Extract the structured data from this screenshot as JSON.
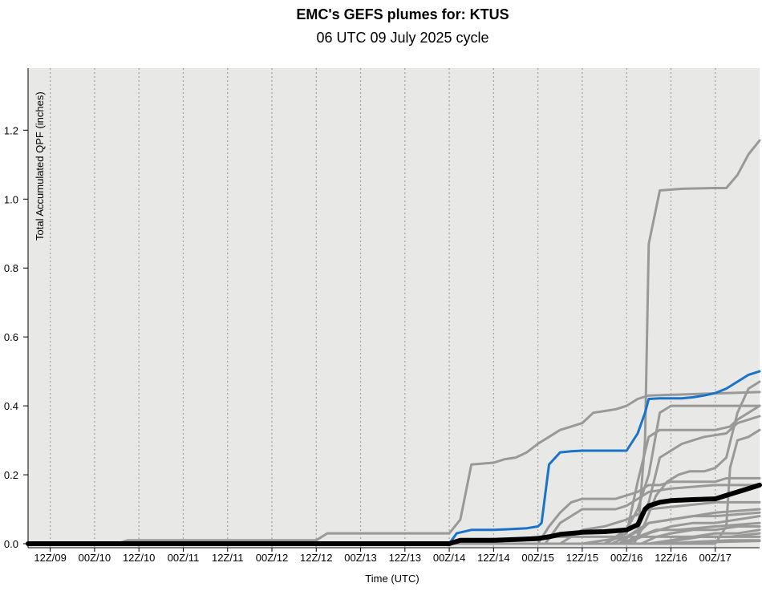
{
  "chart_data": {
    "type": "line",
    "title": "EMC's GEFS plumes for: KTUS",
    "subtitle": "06 UTC 09 July 2025 cycle",
    "xlabel": "Time (UTC)",
    "ylabel": "Total Accumulated QPF (inches)",
    "x_unit": "forecast hour",
    "xlim": [
      0,
      198
    ],
    "ylim": [
      0,
      1.38
    ],
    "grid": "vertical dotted",
    "x_ticks": [
      {
        "x": 6,
        "label": "12Z/09"
      },
      {
        "x": 18,
        "label": "00Z/10"
      },
      {
        "x": 30,
        "label": "12Z/10"
      },
      {
        "x": 42,
        "label": "00Z/11"
      },
      {
        "x": 54,
        "label": "12Z/11"
      },
      {
        "x": 66,
        "label": "00Z/12"
      },
      {
        "x": 78,
        "label": "12Z/12"
      },
      {
        "x": 90,
        "label": "00Z/13"
      },
      {
        "x": 102,
        "label": "12Z/13"
      },
      {
        "x": 114,
        "label": "00Z/14"
      },
      {
        "x": 126,
        "label": "12Z/14"
      },
      {
        "x": 138,
        "label": "00Z/15"
      },
      {
        "x": 150,
        "label": "12Z/15"
      },
      {
        "x": 162,
        "label": "00Z/16"
      },
      {
        "x": 174,
        "label": "12Z/16"
      },
      {
        "x": 186,
        "label": "00Z/17"
      }
    ],
    "y_ticks": [
      {
        "y": 0.0,
        "label": "0.0"
      },
      {
        "y": 0.2,
        "label": "0.2"
      },
      {
        "y": 0.4,
        "label": "0.4"
      },
      {
        "y": 0.6,
        "label": "0.6"
      },
      {
        "y": 0.8,
        "label": "0.8"
      },
      {
        "y": 1.0,
        "label": "1.0"
      },
      {
        "y": 1.2,
        "label": "1.2"
      }
    ],
    "series": [
      {
        "color": "#999999",
        "width": 3,
        "points": [
          [
            0,
            0
          ],
          [
            24,
            0
          ],
          [
            27,
            0.01
          ],
          [
            78,
            0.01
          ],
          [
            81,
            0.03
          ],
          [
            102,
            0.03
          ],
          [
            114,
            0.03
          ],
          [
            117,
            0.07
          ],
          [
            120,
            0.23
          ],
          [
            126,
            0.235
          ],
          [
            129,
            0.245
          ],
          [
            132,
            0.25
          ],
          [
            135,
            0.265
          ],
          [
            138,
            0.29
          ],
          [
            141,
            0.31
          ],
          [
            144,
            0.33
          ],
          [
            147,
            0.34
          ],
          [
            150,
            0.35
          ],
          [
            153,
            0.38
          ],
          [
            156,
            0.385
          ],
          [
            159,
            0.39
          ],
          [
            162,
            0.4
          ],
          [
            165,
            0.42
          ],
          [
            168,
            0.43
          ],
          [
            198,
            0.44
          ]
        ]
      },
      {
        "color": "#999999",
        "width": 3,
        "points": [
          [
            0,
            0
          ],
          [
            162,
            0.0
          ],
          [
            165,
            0.02
          ],
          [
            167,
            0.3
          ],
          [
            168,
            0.87
          ],
          [
            171,
            1.025
          ],
          [
            177,
            1.03
          ],
          [
            186,
            1.032
          ],
          [
            189,
            1.032
          ],
          [
            192,
            1.07
          ],
          [
            195,
            1.13
          ],
          [
            198,
            1.17
          ]
        ]
      },
      {
        "color": "#999999",
        "width": 3,
        "points": [
          [
            0,
            0
          ],
          [
            156,
            0.0
          ],
          [
            162,
            0.04
          ],
          [
            165,
            0.1
          ],
          [
            168,
            0.2
          ],
          [
            171,
            0.38
          ],
          [
            174,
            0.4
          ],
          [
            198,
            0.4
          ]
        ]
      },
      {
        "color": "#999999",
        "width": 3,
        "points": [
          [
            0,
            0
          ],
          [
            156,
            0.0
          ],
          [
            162,
            0.03
          ],
          [
            165,
            0.18
          ],
          [
            168,
            0.31
          ],
          [
            171,
            0.33
          ],
          [
            177,
            0.33
          ],
          [
            186,
            0.33
          ],
          [
            190,
            0.34
          ],
          [
            192,
            0.36
          ],
          [
            198,
            0.4
          ]
        ]
      },
      {
        "color": "#999999",
        "width": 3,
        "points": [
          [
            0,
            0
          ],
          [
            160,
            0.0
          ],
          [
            165,
            0.04
          ],
          [
            168,
            0.12
          ],
          [
            171,
            0.25
          ],
          [
            174,
            0.27
          ],
          [
            177,
            0.29
          ],
          [
            180,
            0.3
          ],
          [
            183,
            0.31
          ],
          [
            186,
            0.315
          ],
          [
            189,
            0.32
          ],
          [
            192,
            0.35
          ],
          [
            195,
            0.36
          ],
          [
            198,
            0.37
          ]
        ]
      },
      {
        "color": "#999999",
        "width": 3,
        "points": [
          [
            0,
            0
          ],
          [
            164,
            0.0
          ],
          [
            167,
            0.06
          ],
          [
            170,
            0.14
          ],
          [
            173,
            0.18
          ],
          [
            176,
            0.2
          ],
          [
            179,
            0.21
          ],
          [
            183,
            0.21
          ],
          [
            186,
            0.22
          ],
          [
            189,
            0.25
          ],
          [
            192,
            0.38
          ],
          [
            195,
            0.45
          ],
          [
            198,
            0.47
          ]
        ]
      },
      {
        "color": "#999999",
        "width": 3,
        "points": [
          [
            0,
            0
          ],
          [
            186,
            0.0
          ],
          [
            189,
            0.05
          ],
          [
            190,
            0.22
          ],
          [
            192,
            0.3
          ],
          [
            195,
            0.31
          ],
          [
            198,
            0.33
          ]
        ]
      },
      {
        "color": "#999999",
        "width": 3,
        "points": [
          [
            0,
            0
          ],
          [
            138,
            0.0
          ],
          [
            141,
            0.05
          ],
          [
            144,
            0.09
          ],
          [
            147,
            0.12
          ],
          [
            150,
            0.13
          ],
          [
            156,
            0.13
          ],
          [
            159,
            0.13
          ],
          [
            162,
            0.14
          ],
          [
            165,
            0.15
          ],
          [
            168,
            0.17
          ],
          [
            171,
            0.17
          ],
          [
            174,
            0.18
          ],
          [
            177,
            0.18
          ],
          [
            186,
            0.18
          ],
          [
            189,
            0.19
          ],
          [
            198,
            0.19
          ]
        ]
      },
      {
        "color": "#999999",
        "width": 3,
        "points": [
          [
            0,
            0
          ],
          [
            140,
            0.0
          ],
          [
            144,
            0.06
          ],
          [
            147,
            0.08
          ],
          [
            150,
            0.1
          ],
          [
            156,
            0.1
          ],
          [
            159,
            0.1
          ],
          [
            162,
            0.11
          ],
          [
            165,
            0.13
          ],
          [
            168,
            0.15
          ],
          [
            174,
            0.16
          ],
          [
            186,
            0.17
          ],
          [
            198,
            0.17
          ]
        ]
      },
      {
        "color": "#999999",
        "width": 3,
        "points": [
          [
            0,
            0
          ],
          [
            144,
            0.0
          ],
          [
            147,
            0.02
          ],
          [
            150,
            0.04
          ],
          [
            156,
            0.05
          ],
          [
            159,
            0.06
          ],
          [
            162,
            0.07
          ],
          [
            168,
            0.1
          ],
          [
            177,
            0.11
          ],
          [
            186,
            0.12
          ],
          [
            198,
            0.12
          ]
        ]
      },
      {
        "color": "#999999",
        "width": 3,
        "points": [
          [
            0,
            0
          ],
          [
            150,
            0.0
          ],
          [
            156,
            0.01
          ],
          [
            162,
            0.02
          ],
          [
            165,
            0.04
          ],
          [
            168,
            0.06
          ],
          [
            174,
            0.07
          ],
          [
            186,
            0.09
          ],
          [
            198,
            0.1
          ]
        ]
      },
      {
        "color": "#999999",
        "width": 3,
        "points": [
          [
            0,
            0
          ],
          [
            158,
            0.0
          ],
          [
            162,
            0.02
          ],
          [
            166,
            0.04
          ],
          [
            168,
            0.06
          ],
          [
            174,
            0.07
          ],
          [
            180,
            0.08
          ],
          [
            186,
            0.08
          ],
          [
            198,
            0.09
          ]
        ]
      },
      {
        "color": "#999999",
        "width": 3,
        "points": [
          [
            0,
            0
          ],
          [
            162,
            0.0
          ],
          [
            168,
            0.03
          ],
          [
            174,
            0.05
          ],
          [
            180,
            0.06
          ],
          [
            186,
            0.06
          ],
          [
            192,
            0.07
          ],
          [
            198,
            0.08
          ]
        ]
      },
      {
        "color": "#999999",
        "width": 3,
        "points": [
          [
            0,
            0
          ],
          [
            160,
            0.0
          ],
          [
            165,
            0.02
          ],
          [
            170,
            0.04
          ],
          [
            176,
            0.04
          ],
          [
            186,
            0.05
          ],
          [
            198,
            0.06
          ]
        ]
      },
      {
        "color": "#999999",
        "width": 3,
        "points": [
          [
            0,
            0
          ],
          [
            166,
            0.0
          ],
          [
            170,
            0.02
          ],
          [
            174,
            0.03
          ],
          [
            180,
            0.04
          ],
          [
            186,
            0.04
          ],
          [
            192,
            0.05
          ],
          [
            198,
            0.05
          ]
        ]
      },
      {
        "color": "#999999",
        "width": 3,
        "points": [
          [
            0,
            0
          ],
          [
            168,
            0.0
          ],
          [
            174,
            0.01
          ],
          [
            180,
            0.02
          ],
          [
            186,
            0.03
          ],
          [
            192,
            0.03
          ],
          [
            198,
            0.04
          ]
        ]
      },
      {
        "color": "#999999",
        "width": 3,
        "points": [
          [
            0,
            0
          ],
          [
            170,
            0.0
          ],
          [
            176,
            0.01
          ],
          [
            182,
            0.02
          ],
          [
            190,
            0.02
          ],
          [
            198,
            0.03
          ]
        ]
      },
      {
        "color": "#999999",
        "width": 3,
        "points": [
          [
            0,
            0
          ],
          [
            114,
            0.0
          ],
          [
            117,
            0.01
          ],
          [
            130,
            0.01
          ],
          [
            138,
            0.02
          ],
          [
            150,
            0.02
          ],
          [
            162,
            0.02
          ],
          [
            174,
            0.02
          ],
          [
            186,
            0.02
          ],
          [
            198,
            0.02
          ]
        ]
      },
      {
        "color": "#999999",
        "width": 3,
        "points": [
          [
            0,
            0
          ],
          [
            172,
            0.0
          ],
          [
            180,
            0.005
          ],
          [
            190,
            0.01
          ],
          [
            198,
            0.01
          ]
        ]
      },
      {
        "color": "#999999",
        "width": 3,
        "points": [
          [
            0,
            0
          ],
          [
            176,
            0.0
          ],
          [
            186,
            0.005
          ],
          [
            198,
            0.008
          ]
        ]
      },
      {
        "color": "#1a73c8",
        "width": 3,
        "name": "",
        "points": [
          [
            0,
            0
          ],
          [
            114,
            0
          ],
          [
            116,
            0.03
          ],
          [
            120,
            0.04
          ],
          [
            126,
            0.04
          ],
          [
            132,
            0.043
          ],
          [
            135,
            0.045
          ],
          [
            138,
            0.05
          ],
          [
            139,
            0.06
          ],
          [
            141,
            0.23
          ],
          [
            144,
            0.265
          ],
          [
            147,
            0.268
          ],
          [
            150,
            0.27
          ],
          [
            162,
            0.27
          ],
          [
            165,
            0.32
          ],
          [
            167,
            0.38
          ],
          [
            168,
            0.42
          ],
          [
            171,
            0.422
          ],
          [
            177,
            0.422
          ],
          [
            180,
            0.425
          ],
          [
            183,
            0.43
          ],
          [
            186,
            0.437
          ],
          [
            189,
            0.45
          ],
          [
            192,
            0.47
          ],
          [
            195,
            0.49
          ],
          [
            198,
            0.5
          ]
        ]
      },
      {
        "color": "#000000",
        "width": 6,
        "name": "",
        "points": [
          [
            0,
            0
          ],
          [
            114,
            0
          ],
          [
            117,
            0.01
          ],
          [
            126,
            0.01
          ],
          [
            132,
            0.012
          ],
          [
            138,
            0.015
          ],
          [
            141,
            0.02
          ],
          [
            144,
            0.027
          ],
          [
            147,
            0.03
          ],
          [
            150,
            0.033
          ],
          [
            156,
            0.035
          ],
          [
            162,
            0.04
          ],
          [
            165,
            0.055
          ],
          [
            167,
            0.1
          ],
          [
            168,
            0.11
          ],
          [
            171,
            0.12
          ],
          [
            174,
            0.125
          ],
          [
            180,
            0.128
          ],
          [
            186,
            0.13
          ],
          [
            189,
            0.14
          ],
          [
            192,
            0.15
          ],
          [
            195,
            0.16
          ],
          [
            198,
            0.17
          ]
        ]
      }
    ]
  }
}
